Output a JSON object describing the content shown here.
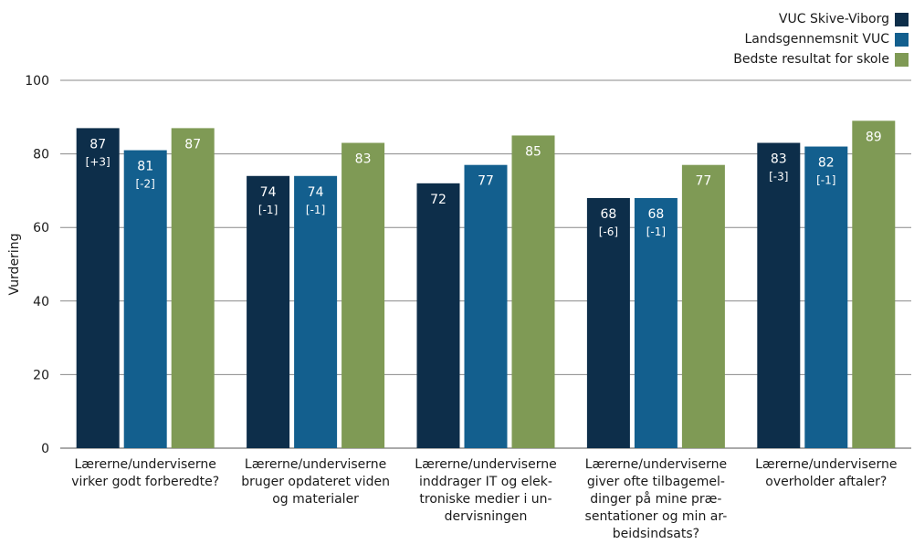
{
  "chart_data": {
    "type": "bar",
    "ylabel": "Vurdering",
    "ylim": [
      0,
      100
    ],
    "yticks": [
      0,
      20,
      40,
      60,
      80,
      100
    ],
    "grid": true,
    "legend_position": "top-right",
    "categories": [
      [
        "Lærerne/underviserne",
        "virker godt forberedte?"
      ],
      [
        "Lærerne/underviserne",
        "bruger opdateret viden",
        "og materialer"
      ],
      [
        "Lærerne/underviserne",
        "inddrager IT og elek-",
        "troniske medier i un-",
        "dervisningen"
      ],
      [
        "Lærerne/underviserne",
        "giver ofte tilbagemel-",
        "dinger på mine præ-",
        "sentationer og min ar-",
        "beidsindsats?"
      ],
      [
        "Lærerne/underviserne",
        "overholder aftaler?"
      ]
    ],
    "series": [
      {
        "name": "VUC Skive-Viborg",
        "color": "#0d2e4a",
        "values": [
          87,
          74,
          72,
          68,
          83
        ],
        "labels": [
          "87",
          "74",
          "72",
          "68",
          "83"
        ],
        "deltas": [
          "[+3]",
          "[-1]",
          "",
          "[-6]",
          "[-3]"
        ]
      },
      {
        "name": "Landsgennemsnit VUC",
        "color": "#135f8e",
        "values": [
          81,
          74,
          77,
          68,
          82
        ],
        "labels": [
          "81",
          "74",
          "77",
          "68",
          "82"
        ],
        "deltas": [
          "[-2]",
          "[-1]",
          "",
          "[-1]",
          "[-1]"
        ]
      },
      {
        "name": "Bedste resultat for skole",
        "color": "#7f9a55",
        "values": [
          87,
          83,
          85,
          77,
          89
        ],
        "labels": [
          "87",
          "83",
          "85",
          "77",
          "89"
        ],
        "deltas": [
          "",
          "",
          "",
          "",
          ""
        ]
      }
    ]
  }
}
